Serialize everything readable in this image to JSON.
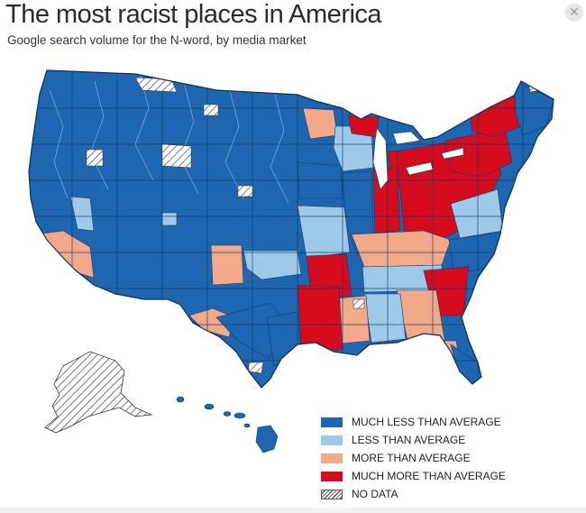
{
  "title": "The most racist places in America",
  "subtitle": "Google search volume for the N-word, by media market",
  "close_icon": "close-icon",
  "colors": {
    "much_less": "#1f66b0",
    "less": "#9ec9e8",
    "more": "#f2a98a",
    "much_more": "#d50b1e",
    "no_data": "#ffffff",
    "border": "#123a66",
    "coast": "#ffffff"
  },
  "legend": [
    {
      "key": "much_less",
      "label": "MUCH LESS THAN AVERAGE"
    },
    {
      "key": "less",
      "label": "LESS THAN AVERAGE"
    },
    {
      "key": "more",
      "label": "MORE THAN AVERAGE"
    },
    {
      "key": "much_more",
      "label": "MUCH MORE THAN AVERAGE"
    },
    {
      "key": "no_data",
      "label": "NO DATA"
    }
  ],
  "regions": {
    "west_north": "much_less",
    "west_south": "much_less",
    "plains": "much_less",
    "california_south": "more",
    "nevada_east": "less",
    "colorado_east": "less",
    "new_mexico_east": "more",
    "texas_west": "more",
    "texas_central": "much_less",
    "texas_east": "much_less",
    "oklahoma": "less",
    "upper_midwest": "much_less",
    "minnesota_east": "more",
    "wisconsin": "less",
    "michigan_north": "much_more",
    "ohio_valley": "much_more",
    "pennsylvania": "much_more",
    "kentucky": "more",
    "tennessee": "less",
    "louisiana": "much_more",
    "mississippi": "more",
    "alabama": "less",
    "georgia": "more",
    "south_carolina": "much_more",
    "north_carolina": "much_less",
    "florida": "much_less",
    "florida_north": "more",
    "virginia": "less",
    "new_england": "much_less",
    "new_york": "much_more",
    "arkansas": "much_more",
    "missouri": "less",
    "iowa": "much_less",
    "illinois": "much_less",
    "indiana": "much_more",
    "hawaii": "much_less",
    "alaska": "no_data"
  }
}
